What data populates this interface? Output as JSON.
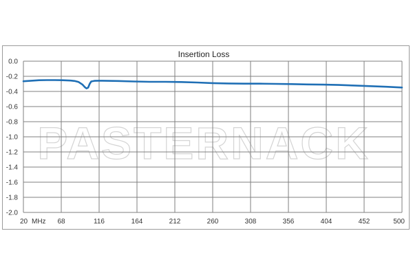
{
  "chart_data": {
    "type": "line",
    "title": "Insertion Loss",
    "xlabel": "",
    "ylabel": "",
    "x_unit_label": "MHz",
    "x_ticks": [
      20,
      68,
      116,
      164,
      212,
      260,
      308,
      356,
      404,
      452,
      500
    ],
    "xlim": [
      20,
      500
    ],
    "y_ticks": [
      "0.0",
      "-0.2",
      "-0.4",
      "-0.6",
      "-0.8",
      "-1.0",
      "-1.2",
      "-1.4",
      "-1.6",
      "-1.8",
      "-2.0"
    ],
    "ylim": [
      -2.0,
      0.0
    ],
    "grid": true,
    "legend": "none",
    "series": [
      {
        "color": "#1f6fb5",
        "x": [
          20,
          30,
          40,
          50,
          60,
          70,
          80,
          85,
          90,
          95,
          98,
          100,
          102,
          104,
          106,
          110,
          115,
          120,
          140,
          160,
          180,
          200,
          220,
          240,
          260,
          280,
          300,
          320,
          340,
          360,
          380,
          400,
          420,
          440,
          460,
          480,
          500
        ],
        "y": [
          -0.265,
          -0.258,
          -0.252,
          -0.25,
          -0.25,
          -0.252,
          -0.256,
          -0.262,
          -0.275,
          -0.31,
          -0.345,
          -0.36,
          -0.35,
          -0.3,
          -0.268,
          -0.26,
          -0.258,
          -0.258,
          -0.262,
          -0.268,
          -0.273,
          -0.273,
          -0.275,
          -0.282,
          -0.29,
          -0.295,
          -0.297,
          -0.297,
          -0.3,
          -0.303,
          -0.307,
          -0.31,
          -0.315,
          -0.322,
          -0.33,
          -0.338,
          -0.348
        ]
      }
    ]
  },
  "watermark": "PASTERNACK"
}
